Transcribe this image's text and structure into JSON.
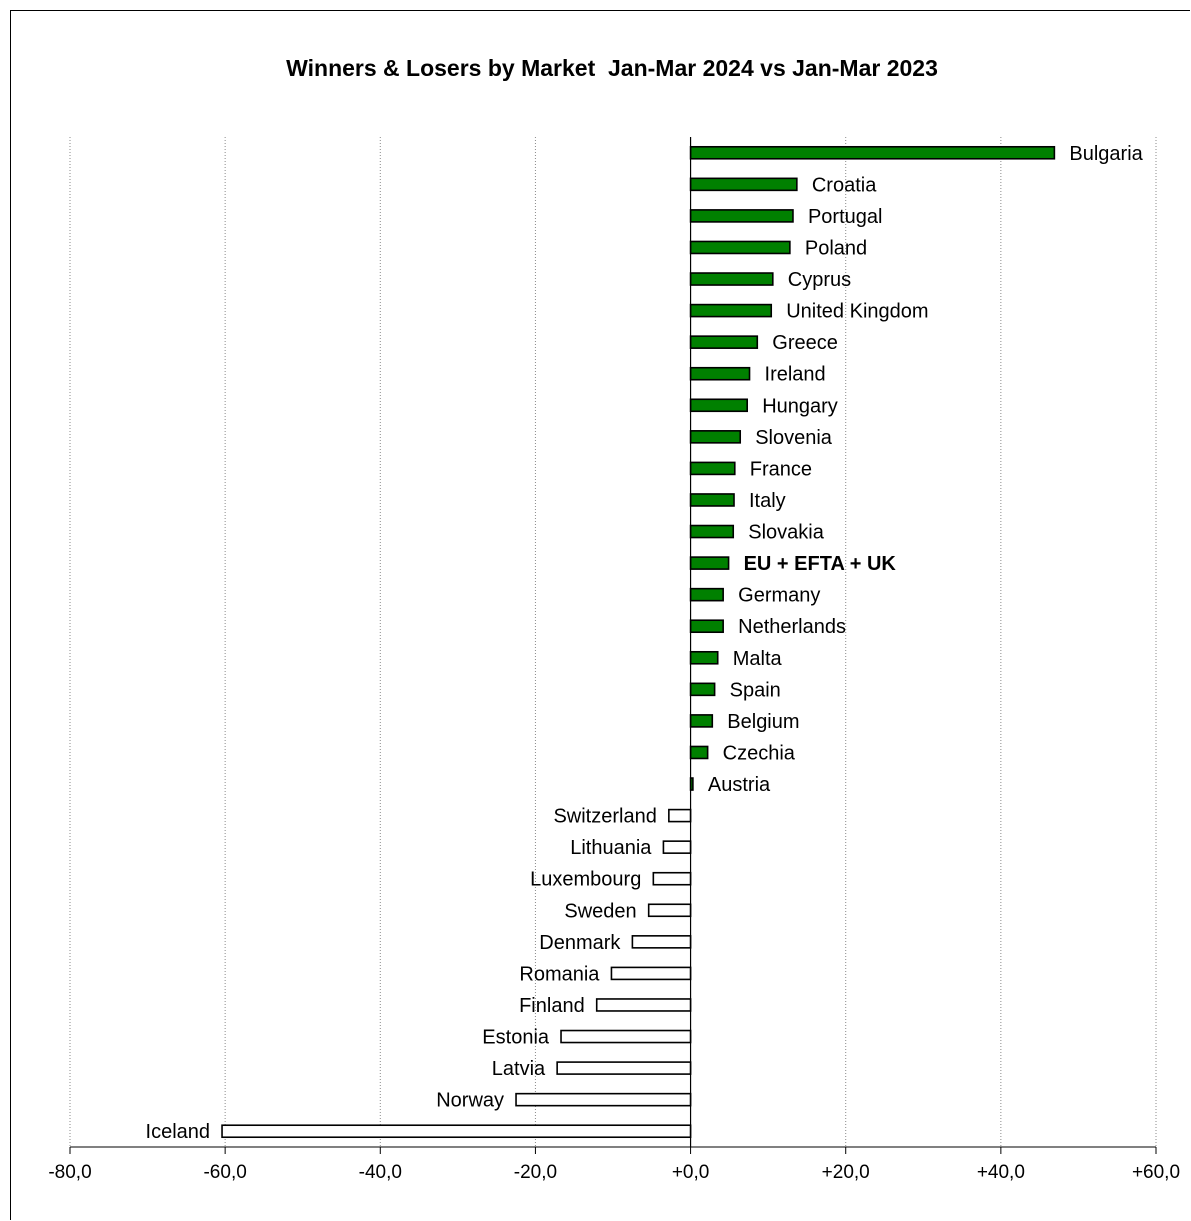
{
  "chart_data": {
    "type": "bar",
    "orientation": "horizontal",
    "title": "Winners & Losers by Market  Jan-Mar 2024 vs Jan-Mar 2023",
    "xlabel": "",
    "ylabel": "",
    "xlim": [
      -80,
      60
    ],
    "x_ticks": [
      -80,
      -60,
      -40,
      -20,
      0,
      20,
      40,
      60
    ],
    "x_tick_labels": [
      "-80,0",
      "-60,0",
      "-40,0",
      "-20,0",
      "+0,0",
      "+20,0",
      "+40,0",
      "+60,0"
    ],
    "grid": "vertical dotted",
    "positive_color": "#008000",
    "negative_color": "#ffffff",
    "categories": [
      "Bulgaria",
      "Croatia",
      "Portugal",
      "Poland",
      "Cyprus",
      "United Kingdom",
      "Greece",
      "Ireland",
      "Hungary",
      "Slovenia",
      "France",
      "Italy",
      "Slovakia",
      "EU + EFTA + UK",
      "Germany",
      "Netherlands",
      "Malta",
      "Spain",
      "Belgium",
      "Czechia",
      "Austria",
      "Switzerland",
      "Lithuania",
      "Luxembourg",
      "Sweden",
      "Denmark",
      "Romania",
      "Finland",
      "Estonia",
      "Latvia",
      "Norway",
      "Iceland"
    ],
    "values": [
      46.9,
      13.7,
      13.2,
      12.8,
      10.6,
      10.4,
      8.6,
      7.6,
      7.3,
      6.4,
      5.7,
      5.6,
      5.5,
      4.9,
      4.2,
      4.2,
      3.5,
      3.1,
      2.8,
      2.2,
      0.3,
      -2.8,
      -3.5,
      -4.8,
      -5.4,
      -7.5,
      -10.2,
      -12.1,
      -16.7,
      -17.2,
      -22.5,
      -60.4
    ],
    "highlight": "EU + EFTA + UK"
  }
}
